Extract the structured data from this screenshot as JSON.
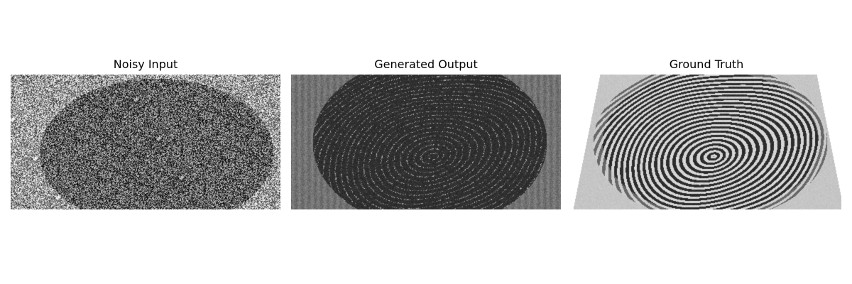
{
  "panels": [
    {
      "title": "Noisy Input",
      "content": "noisy fingerprint image"
    },
    {
      "title": "Generated Output",
      "content": "generated fingerprint image"
    },
    {
      "title": "Ground Truth",
      "content": "clean fingerprint image"
    }
  ]
}
